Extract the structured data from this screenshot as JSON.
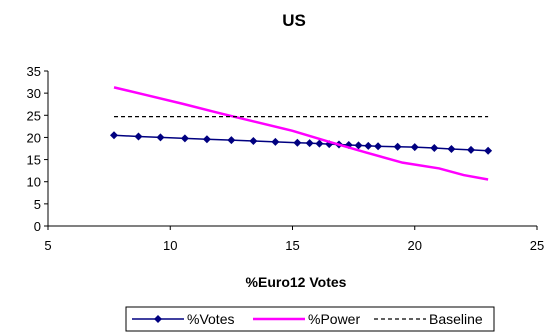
{
  "chart_data": {
    "type": "line",
    "title": "US",
    "xlabel": "%Euro12 Votes",
    "ylabel": "",
    "xlim": [
      5,
      25
    ],
    "ylim": [
      0,
      35
    ],
    "x_ticks": [
      5,
      10,
      15,
      20,
      25
    ],
    "y_ticks": [
      0,
      5,
      10,
      15,
      20,
      25,
      30,
      35
    ],
    "grid": false,
    "legend_position": "bottom",
    "series": [
      {
        "name": "%Votes",
        "style": "line-with-diamond-markers",
        "color": "#000080",
        "x": [
          7.7,
          8.7,
          9.6,
          10.6,
          11.5,
          12.5,
          13.4,
          14.3,
          15.2,
          15.7,
          16.1,
          16.5,
          16.9,
          17.3,
          17.7,
          18.1,
          18.5,
          19.3,
          20.0,
          20.8,
          21.5,
          22.3,
          23.0
        ],
        "y": [
          20.5,
          20.2,
          20.0,
          19.8,
          19.6,
          19.4,
          19.2,
          19.0,
          18.8,
          18.7,
          18.6,
          18.5,
          18.4,
          18.3,
          18.2,
          18.1,
          18.0,
          17.9,
          17.8,
          17.6,
          17.4,
          17.2,
          17.0
        ]
      },
      {
        "name": "%Power",
        "style": "line",
        "color": "#ff00ff",
        "x": [
          7.7,
          9.0,
          10.5,
          12.0,
          13.5,
          15.0,
          16.5,
          18.0,
          19.5,
          21.0,
          22.0,
          23.0
        ],
        "y": [
          31.3,
          29.6,
          27.6,
          25.5,
          23.5,
          21.5,
          19.0,
          16.6,
          14.3,
          13.0,
          11.5,
          10.5
        ]
      },
      {
        "name": "Baseline",
        "style": "dashed",
        "color": "#000000",
        "x": [
          7.7,
          23.0
        ],
        "y": [
          24.7,
          24.7
        ]
      }
    ]
  }
}
